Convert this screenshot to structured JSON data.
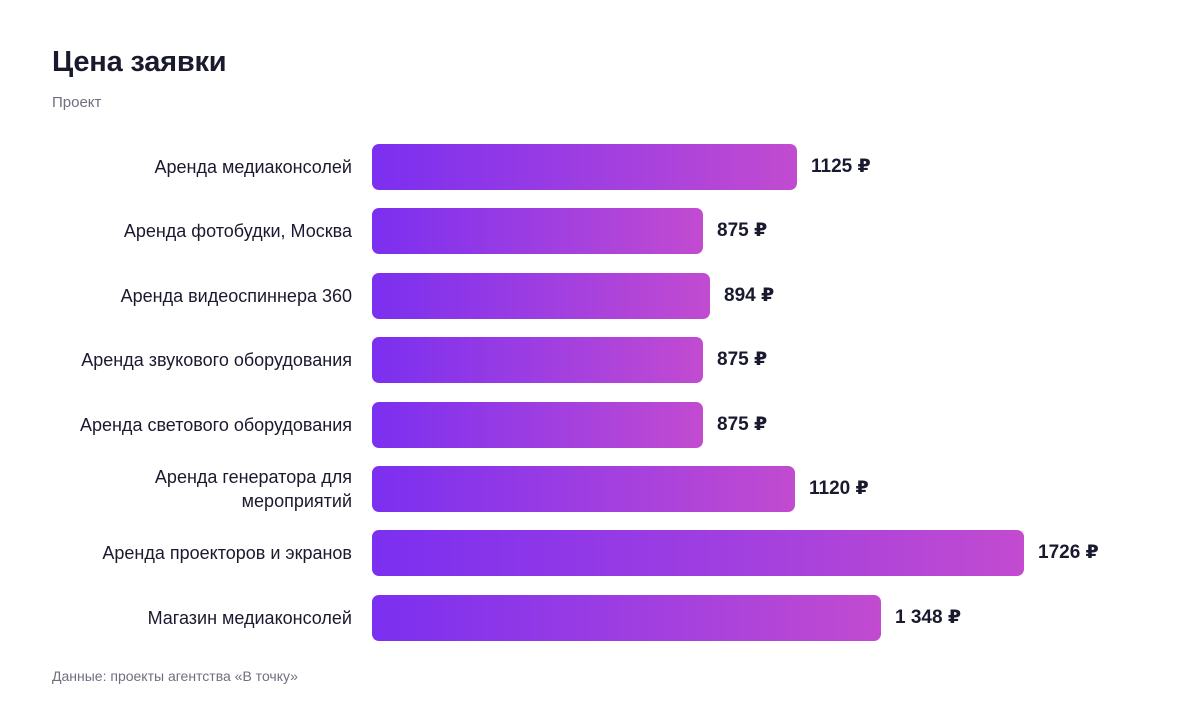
{
  "title": "Цена заявки",
  "subtitle": "Проект",
  "source": "Данные: проекты агентства «В точку»",
  "chart_data": {
    "type": "bar",
    "orientation": "horizontal",
    "title": "Цена заявки",
    "subtitle": "Проект",
    "categories": [
      "Аренда медиаконсолей",
      "Аренда фотобудки, Москва",
      "Аренда видеоспиннера 360",
      "Аренда звукового оборудования",
      "Аренда светового оборудования",
      "Аренда генератора для мероприятий",
      "Аренда проекторов и экранов",
      "Магазин медиаконсолей"
    ],
    "values": [
      1125,
      875,
      894,
      875,
      875,
      1120,
      1726,
      1348
    ],
    "value_labels": [
      "1125 ₽",
      "875 ₽",
      "894 ₽",
      "875 ₽",
      "875 ₽",
      "1120 ₽",
      "1726 ₽",
      "1 348 ₽"
    ],
    "unit": "₽",
    "bar_color_start": "#7b2ff0",
    "bar_color_end": "#c24bd0",
    "grid": false,
    "legend": "none"
  }
}
